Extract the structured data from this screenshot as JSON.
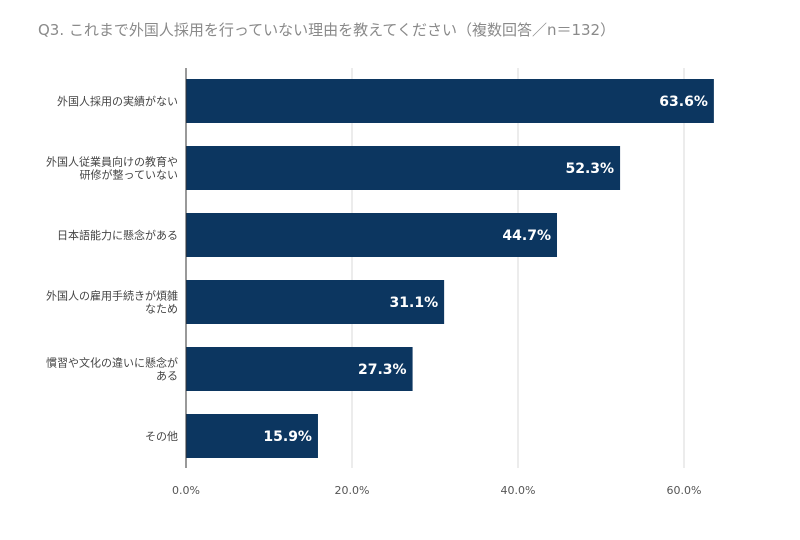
{
  "chart_data": {
    "type": "bar",
    "orientation": "horizontal",
    "title": "Q3. これまで外国人採用を行っていない理由を教えてください（複数回答／n＝132）",
    "categories": [
      [
        "外国人採用の実績がない"
      ],
      [
        "外国人従業員向けの教育や",
        "研修が整っていない"
      ],
      [
        "日本語能力に懸念がある"
      ],
      [
        "外国人の雇用手続きが煩雑",
        "なため"
      ],
      [
        "慣習や文化の違いに懸念が",
        "ある"
      ],
      [
        "その他"
      ]
    ],
    "values": [
      63.6,
      52.3,
      44.7,
      31.1,
      27.3,
      15.9
    ],
    "data_labels": [
      "63.6%",
      "52.3%",
      "44.7%",
      "31.1%",
      "27.3%",
      "15.9%"
    ],
    "xlim": [
      0,
      65
    ],
    "x_ticks": [
      0,
      20,
      40,
      60
    ],
    "x_tick_labels": [
      "0.0%",
      "20.0%",
      "40.0%",
      "60.0%"
    ],
    "grid": true,
    "bar_color": "#0c3660",
    "label_color": "#ffffff"
  }
}
